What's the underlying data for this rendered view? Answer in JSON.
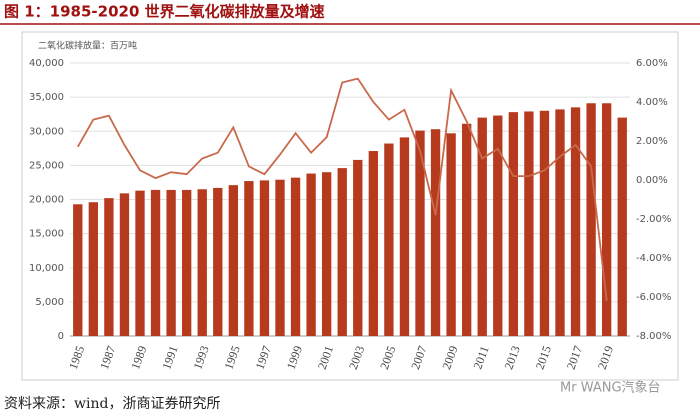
{
  "title": "图 1：1985-2020 世界二氧化碳排放量及增速",
  "source": "资料来源：wind，浙商证券研究所",
  "watermark": "Mr WANG汽象台",
  "chart_data": {
    "type": "bar",
    "y_label": "二氧化碳排放量：百万吨",
    "categories": [
      "1985",
      null,
      "1987",
      null,
      "1989",
      null,
      "1991",
      null,
      "1993",
      null,
      "1995",
      null,
      "1997",
      null,
      "1999",
      null,
      "2001",
      null,
      "2003",
      null,
      "2005",
      null,
      "2007",
      null,
      "2009",
      null,
      "2011",
      null,
      "2013",
      null,
      "2015",
      null,
      "2017",
      null,
      "2019",
      null
    ],
    "series": [
      {
        "type": "bar",
        "color": "#b63a1e",
        "values": [
          19300,
          19600,
          20200,
          20900,
          21300,
          21400,
          21400,
          21400,
          21500,
          21700,
          22100,
          22700,
          22800,
          22900,
          23200,
          23800,
          24000,
          24600,
          25800,
          27100,
          28200,
          29100,
          30100,
          30300,
          29700,
          31100,
          32000,
          32300,
          32800,
          32900,
          33000,
          33200,
          33500,
          34100,
          34100,
          32000
        ]
      },
      {
        "type": "line",
        "axis": "y2",
        "color": "#c9694c",
        "values": [
          1.7,
          3.1,
          3.3,
          1.8,
          0.5,
          0.1,
          0.4,
          0.3,
          1.1,
          1.4,
          2.7,
          0.7,
          0.3,
          1.3,
          2.4,
          1.4,
          2.2,
          5.0,
          5.2,
          4.0,
          3.1,
          3.6,
          1.5,
          -1.8,
          4.6,
          3.0,
          1.1,
          1.6,
          0.2,
          0.2,
          0.5,
          1.2,
          1.8,
          0.7,
          -6.2,
          null
        ]
      }
    ],
    "ylim": [
      0,
      40000
    ],
    "yticks": [
      0,
      {
        "value": 5000,
        "label": "5,000"
      },
      {
        "value": 10000,
        "label": "10,000"
      },
      {
        "value": 15000,
        "label": "15,000"
      },
      {
        "value": 20000,
        "label": "20,000"
      },
      {
        "value": 25000,
        "label": "25,000"
      },
      {
        "value": 30000,
        "label": "30,000"
      },
      {
        "value": 35000,
        "label": "35,000"
      },
      {
        "value": 40000,
        "label": "40,000"
      }
    ],
    "y2lim": [
      -8,
      6
    ],
    "y2ticks": [
      {
        "value": -8,
        "label": "-8.00%"
      },
      {
        "value": -6,
        "label": "-6.00%"
      },
      {
        "value": -4,
        "label": "-4.00%"
      },
      {
        "value": -2,
        "label": "-2.00%"
      },
      {
        "value": 0,
        "label": "0.00%"
      },
      {
        "value": 2,
        "label": "2.00%"
      },
      {
        "value": 4,
        "label": "4.00%"
      },
      {
        "value": 6,
        "label": "6.00%"
      }
    ],
    "grid": true
  }
}
